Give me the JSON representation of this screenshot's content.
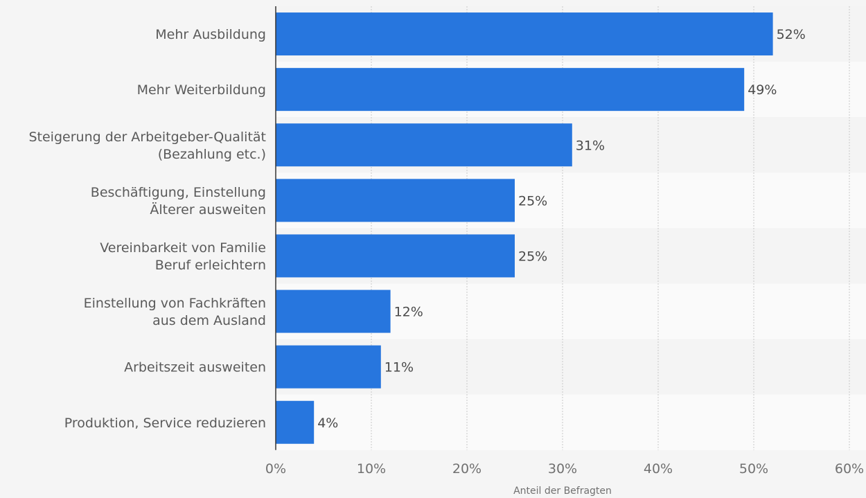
{
  "chart_data": {
    "type": "bar",
    "orientation": "horizontal",
    "categories": [
      [
        "Mehr Ausbildung"
      ],
      [
        "Mehr Weiterbildung"
      ],
      [
        "Steigerung der Arbeitgeber-Qualität",
        "(Bezahlung etc.)"
      ],
      [
        "Beschäftigung, Einstellung",
        "Älterer ausweiten"
      ],
      [
        "Vereinbarkeit von Familie",
        "Beruf erleichtern"
      ],
      [
        "Einstellung von Fachkräften",
        "aus dem Ausland"
      ],
      [
        "Arbeitszeit ausweiten"
      ],
      [
        "Produktion, Service reduzieren"
      ]
    ],
    "values": [
      52,
      49,
      31,
      25,
      25,
      12,
      11,
      4
    ],
    "value_labels": [
      "52%",
      "49%",
      "31%",
      "25%",
      "25%",
      "12%",
      "11%",
      "4%"
    ],
    "xlim": [
      0,
      60
    ],
    "xticks": [
      0,
      10,
      20,
      30,
      40,
      50,
      60
    ],
    "xtick_labels": [
      "0%",
      "10%",
      "20%",
      "30%",
      "40%",
      "50%",
      "60%"
    ],
    "xlabel": "Anteil der Befragten",
    "grid": true,
    "colors": {
      "bar": "#2776de"
    }
  }
}
